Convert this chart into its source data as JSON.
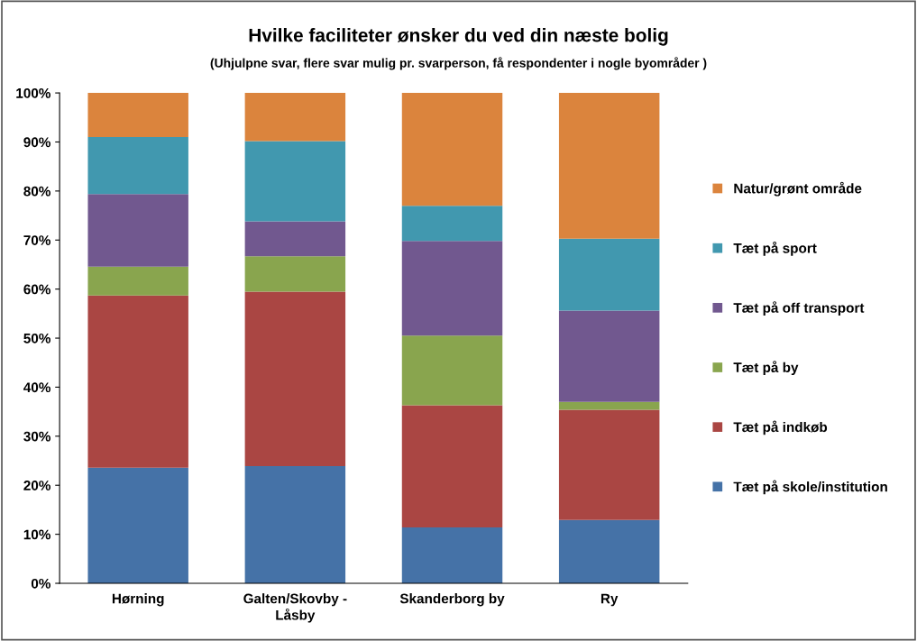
{
  "chart_data": {
    "type": "bar",
    "title": "Hvilke faciliteter ønsker du ved din næste bolig",
    "subtitle": "(Uhjulpne svar, flere svar mulig pr. svarperson, få respondenter i nogle byområder )",
    "categories": [
      "Hørning",
      "Galten/Skovby -\nLåsby",
      "Skanderborg by",
      "Ry"
    ],
    "stacked": true,
    "series": [
      {
        "name": "Tæt på skole/institution",
        "color": "#4572a7",
        "values": [
          23.6,
          23.9,
          11.4,
          12.9
        ]
      },
      {
        "name": "Tæt på indkøb",
        "color": "#aa4643",
        "values": [
          35.1,
          35.6,
          24.9,
          22.5
        ]
      },
      {
        "name": "Tæt på by",
        "color": "#89a54e",
        "values": [
          5.9,
          7.2,
          14.2,
          1.6
        ]
      },
      {
        "name": "Tæt på off transport",
        "color": "#71588f",
        "values": [
          14.8,
          7.1,
          19.3,
          18.6
        ]
      },
      {
        "name": "Tæt på sport",
        "color": "#4198af",
        "values": [
          11.6,
          16.4,
          7.2,
          14.7
        ]
      },
      {
        "name": "Natur/grønt område",
        "color": "#db843d",
        "values": [
          9.0,
          9.8,
          23.0,
          29.7
        ]
      }
    ],
    "ylim": [
      0,
      100
    ],
    "yticks": [
      {
        "value": 0,
        "label": "0%"
      },
      {
        "value": 10,
        "label": "10%"
      },
      {
        "value": 20,
        "label": "20%"
      },
      {
        "value": 30,
        "label": "30%"
      },
      {
        "value": 40,
        "label": "40%"
      },
      {
        "value": 50,
        "label": "50%"
      },
      {
        "value": 60,
        "label": "60%"
      },
      {
        "value": 70,
        "label": "70%"
      },
      {
        "value": 80,
        "label": "80%"
      },
      {
        "value": 90,
        "label": "90%"
      },
      {
        "value": 100,
        "label": "100%"
      }
    ],
    "grid": false,
    "legend": "right"
  }
}
